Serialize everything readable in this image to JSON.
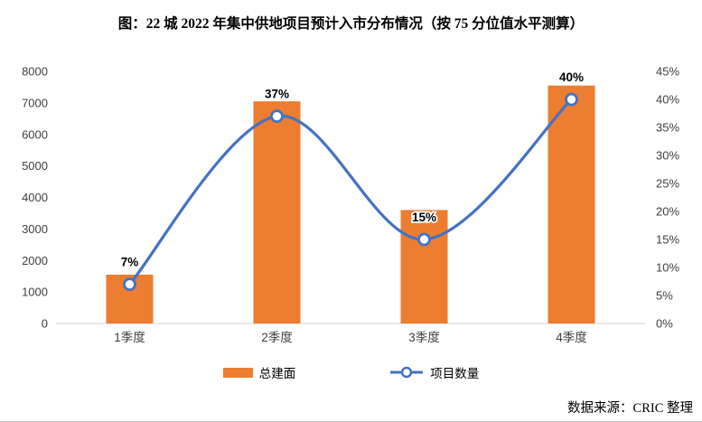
{
  "page": {
    "title": "图：22 城 2022 年集中供地项目预计入市分布情况（按 75 分位值水平测算）",
    "source": "数据来源：CRIC 整理"
  },
  "legend": {
    "position": "bottom",
    "items": [
      {
        "label": "总建面",
        "type": "bar-swatch",
        "color": "#ED7D31"
      },
      {
        "label": "项目数量",
        "type": "line-marker",
        "color": "#4472C4"
      }
    ]
  },
  "chart_data": {
    "type": "combo",
    "categories": [
      "1季度",
      "2季度",
      "3季度",
      "4季度"
    ],
    "series": [
      {
        "name": "总建面",
        "chart": "bar",
        "axis": "left",
        "color": "#ED7D31",
        "values": [
          1550,
          7050,
          3600,
          7550
        ]
      },
      {
        "name": "项目数量",
        "chart": "line",
        "axis": "right",
        "color": "#4472C4",
        "smooth": true,
        "marker": "circle-white-fill",
        "values": [
          7,
          37,
          15,
          40
        ],
        "data_labels": [
          "7%",
          "37%",
          "15%",
          "40%"
        ]
      }
    ],
    "left_axis": {
      "min": 0,
      "max": 8000,
      "step": 1000,
      "tick_labels": [
        "0",
        "1000",
        "2000",
        "3000",
        "4000",
        "5000",
        "6000",
        "7000",
        "8000"
      ]
    },
    "right_axis": {
      "min": 0,
      "max": 45,
      "step": 5,
      "tick_labels": [
        "0%",
        "5%",
        "10%",
        "15%",
        "20%",
        "25%",
        "30%",
        "35%",
        "40%",
        "45%"
      ]
    },
    "grid": false,
    "legend_position": "bottom",
    "axis_line_color": "#d9d9d9",
    "tick_label_color": "#404040",
    "data_label_color": "#000000"
  }
}
